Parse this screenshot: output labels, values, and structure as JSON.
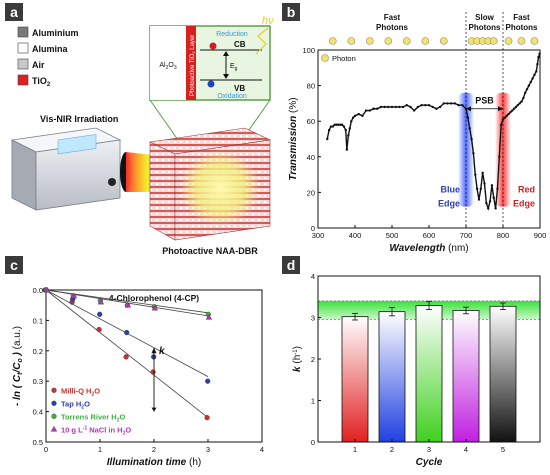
{
  "panels": {
    "a": {
      "label": "a",
      "legend": [
        {
          "name": "Aluminium",
          "color": "#7a7a7a"
        },
        {
          "name": "Alumina",
          "color": "#ffffff"
        },
        {
          "name": "Air",
          "color": "#c9c9c9"
        },
        {
          "name": "TiO",
          "sub": "2",
          "color": "#e02020"
        }
      ],
      "irradiation_label": "Vis-NIR Irradiation",
      "device_label": "Photoactive NAA-DBR",
      "inset": {
        "al2o3_pre": "Al",
        "al2o3_s1": "2",
        "al2o3_mid": "O",
        "al2o3_s2": "3",
        "layer_label": "Photoactive TiO",
        "layer_sub": "2",
        "layer_post": " Layer",
        "reduction": "Reduction",
        "oxidation": "Oxidation",
        "cb": "CB",
        "vb": "VB",
        "eg": "E",
        "eg_sub": "g",
        "hv": "hν",
        "electron": "e",
        "hole": "h"
      }
    },
    "b": {
      "label": "b",
      "top_labels": [
        "Fast Photons",
        "Slow Photons",
        "Fast Photons"
      ],
      "photon_legend": "Photon",
      "psb_label": "PSB",
      "blue_edge": [
        "Blue",
        "Edge"
      ],
      "red_edge": [
        "Red",
        "Edge"
      ],
      "photon_color": "#f2e36a"
    },
    "c": {
      "label": "c",
      "title": "4-Chlorophenol (4-CP)",
      "k_label": "k",
      "legend_note": "10 g L",
      "legend_note_sup": "-1",
      "legend_note_post": " NaCl in H",
      "legend_note_sub": "2",
      "legend_note_end": "O"
    },
    "d": {
      "label": "d"
    }
  },
  "chart_data": [
    {
      "id": "b",
      "type": "line",
      "xlabel": "Wavelength",
      "xlabel_unit": "(nm)",
      "ylabel": "Transmission",
      "ylabel_unit": "(%)",
      "xlim": [
        300,
        900
      ],
      "ylim": [
        0,
        100
      ],
      "xticks": [
        300,
        400,
        500,
        600,
        700,
        800,
        900
      ],
      "yticks": [
        0,
        20,
        40,
        60,
        80,
        100
      ],
      "dividers": [
        700,
        800
      ],
      "psb_range": [
        700,
        800
      ],
      "blue_edge_nm": 700,
      "red_edge_nm": 800,
      "photons_fast_left_nm": [
        340,
        390,
        440,
        490,
        540,
        590,
        640
      ],
      "photons_slow_nm": [
        715,
        730,
        745,
        760,
        775
      ],
      "photons_fast_right_nm": [
        815,
        850,
        885
      ],
      "series": [
        {
          "name": "Transmission",
          "x": [
            325,
            330,
            335,
            340,
            345,
            350,
            355,
            360,
            365,
            370,
            375,
            378,
            382,
            386,
            390,
            395,
            400,
            410,
            420,
            430,
            440,
            450,
            460,
            470,
            480,
            490,
            500,
            510,
            520,
            530,
            540,
            550,
            560,
            570,
            580,
            590,
            600,
            610,
            620,
            630,
            640,
            650,
            660,
            670,
            680,
            690,
            700,
            705,
            710,
            715,
            720,
            725,
            730,
            735,
            740,
            745,
            750,
            755,
            760,
            765,
            770,
            775,
            780,
            785,
            790,
            795,
            800,
            805,
            810,
            815,
            820,
            825,
            830,
            835,
            840,
            845,
            850,
            855,
            860,
            865,
            870,
            875,
            880,
            885,
            890,
            893,
            896,
            899
          ],
          "y": [
            50,
            55,
            57,
            57,
            58,
            58,
            58,
            58,
            58,
            57,
            55,
            44,
            52,
            56,
            60,
            62,
            63,
            64,
            63,
            66,
            66,
            67,
            67,
            68,
            68,
            68,
            68,
            68,
            68,
            68,
            69,
            68,
            66,
            68,
            69,
            69,
            69,
            68,
            67,
            68,
            70,
            70,
            70,
            70,
            69,
            69,
            67,
            62,
            56,
            50,
            42,
            30,
            22,
            16,
            22,
            31,
            25,
            14,
            11,
            15,
            24,
            17,
            11,
            22,
            40,
            58,
            61,
            62,
            63,
            64,
            65,
            66,
            67,
            68,
            69,
            70,
            71,
            73,
            76,
            78,
            80,
            82,
            84,
            86,
            88,
            92,
            96,
            98
          ]
        }
      ]
    },
    {
      "id": "c",
      "type": "scatter",
      "xlabel": "Illumination time",
      "xlabel_unit": "(h)",
      "ylabel_pre": "- ln (",
      "ylabel_c1": "C",
      "ylabel_c1sub": "t",
      "ylabel_mid": "/",
      "ylabel_c2": "C",
      "ylabel_c2sub": "o",
      "ylabel_post": ")",
      "ylabel_unit": "(a.u.)",
      "xlim": [
        0,
        4
      ],
      "ylim": [
        0.5,
        0.0
      ],
      "xticks": [
        0,
        1,
        2,
        3,
        4
      ],
      "yticks": [
        0.0,
        0.1,
        0.2,
        0.3,
        0.4,
        0.5
      ],
      "series": [
        {
          "name": "Milli-Q H",
          "sub": "2",
          "post": "O",
          "color": "#d03030",
          "marker": "circle",
          "x": [
            0,
            0.5,
            1,
            1.5,
            2,
            3
          ],
          "y": [
            0,
            0.04,
            0.13,
            0.22,
            0.27,
            0.42
          ],
          "fit_end": 0.42
        },
        {
          "name": "Tap H",
          "sub": "2",
          "post": "O",
          "color": "#3040b0",
          "marker": "circle",
          "x": [
            0,
            0.5,
            1,
            1.5,
            2,
            3
          ],
          "y": [
            0,
            0.03,
            0.08,
            0.14,
            0.22,
            0.3
          ],
          "fit_end": 0.285
        },
        {
          "name": "Torrens River H",
          "sub": "2",
          "post": "O",
          "color": "#40b040",
          "marker": "circle",
          "x": [
            0,
            0.5,
            1,
            1.5,
            2,
            3
          ],
          "y": [
            0,
            0.02,
            0.035,
            0.05,
            0.055,
            0.08
          ],
          "fit_end": 0.075
        },
        {
          "name": "10 g L",
          "sup": "-1",
          "post": " NaCl in H₂O",
          "color": "#c030c0",
          "marker": "triangle",
          "x": [
            0,
            0.5,
            1,
            1.5,
            2,
            3
          ],
          "y": [
            0,
            0.02,
            0.04,
            0.05,
            0.06,
            0.09
          ],
          "fit_end": 0.085
        }
      ]
    },
    {
      "id": "d",
      "type": "bar",
      "xlabel": "Cycle",
      "ylabel": "k",
      "ylabel_unit": "(h",
      "ylabel_unit_sup": "-1",
      "ylabel_unit_post": ")",
      "categories": [
        "1",
        "2",
        "3",
        "4",
        "5"
      ],
      "values": [
        3.02,
        3.14,
        3.29,
        3.17,
        3.27
      ],
      "errors": [
        0.08,
        0.1,
        0.1,
        0.08,
        0.08
      ],
      "ylim": [
        0,
        4
      ],
      "yticks": [
        0,
        1,
        2,
        3,
        4
      ],
      "band": [
        2.95,
        3.4
      ],
      "bar_colors": [
        "#e02020",
        "#2040e0",
        "#40d020",
        "#c020e0",
        "#111111"
      ]
    }
  ]
}
